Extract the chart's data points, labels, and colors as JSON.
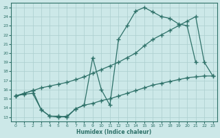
{
  "xlabel": "Humidex (Indice chaleur)",
  "bg_color": "#cce8e8",
  "line_color": "#2d7068",
  "grid_color": "#aacece",
  "xlim": [
    -0.5,
    23.5
  ],
  "ylim": [
    12.5,
    25.5
  ],
  "xticks": [
    0,
    1,
    2,
    3,
    4,
    5,
    6,
    7,
    8,
    9,
    10,
    11,
    12,
    13,
    14,
    15,
    16,
    17,
    18,
    19,
    20,
    21,
    22,
    23
  ],
  "yticks": [
    13,
    14,
    15,
    16,
    17,
    18,
    19,
    20,
    21,
    22,
    23,
    24,
    25
  ],
  "curve1_x": [
    0,
    2,
    3,
    4,
    5,
    6,
    7,
    8,
    9,
    10,
    11,
    12,
    13,
    14,
    15,
    16,
    17,
    18,
    19,
    20,
    21
  ],
  "curve1_y": [
    15.3,
    15.9,
    13.8,
    13.1,
    13.1,
    13.0,
    13.9,
    14.3,
    19.5,
    16.0,
    14.3,
    21.5,
    23.0,
    24.6,
    25.0,
    24.5,
    24.0,
    23.8,
    23.2,
    23.0,
    19.0
  ],
  "curve2_x": [
    0,
    1,
    2,
    3,
    4,
    5,
    6,
    7,
    8,
    9,
    10,
    11,
    12,
    13,
    14,
    15,
    16,
    17,
    18,
    19,
    20,
    21,
    22,
    23
  ],
  "curve2_y": [
    15.3,
    15.6,
    15.9,
    16.2,
    16.4,
    16.6,
    16.8,
    17.1,
    17.4,
    17.8,
    18.2,
    18.6,
    19.0,
    19.5,
    20.0,
    20.8,
    21.5,
    22.0,
    22.5,
    23.0,
    23.5,
    24.0,
    19.0,
    17.5
  ],
  "curve3_x": [
    0,
    1,
    2,
    3,
    4,
    5,
    6,
    7,
    8,
    9,
    10,
    11,
    12,
    13,
    14,
    15,
    16,
    17,
    18,
    19,
    20,
    21,
    22,
    23
  ],
  "curve3_y": [
    15.3,
    15.5,
    15.6,
    13.8,
    13.1,
    13.0,
    13.1,
    13.9,
    14.3,
    14.5,
    14.8,
    15.0,
    15.3,
    15.6,
    15.9,
    16.2,
    16.5,
    16.7,
    16.9,
    17.1,
    17.3,
    17.4,
    17.5,
    17.5
  ]
}
